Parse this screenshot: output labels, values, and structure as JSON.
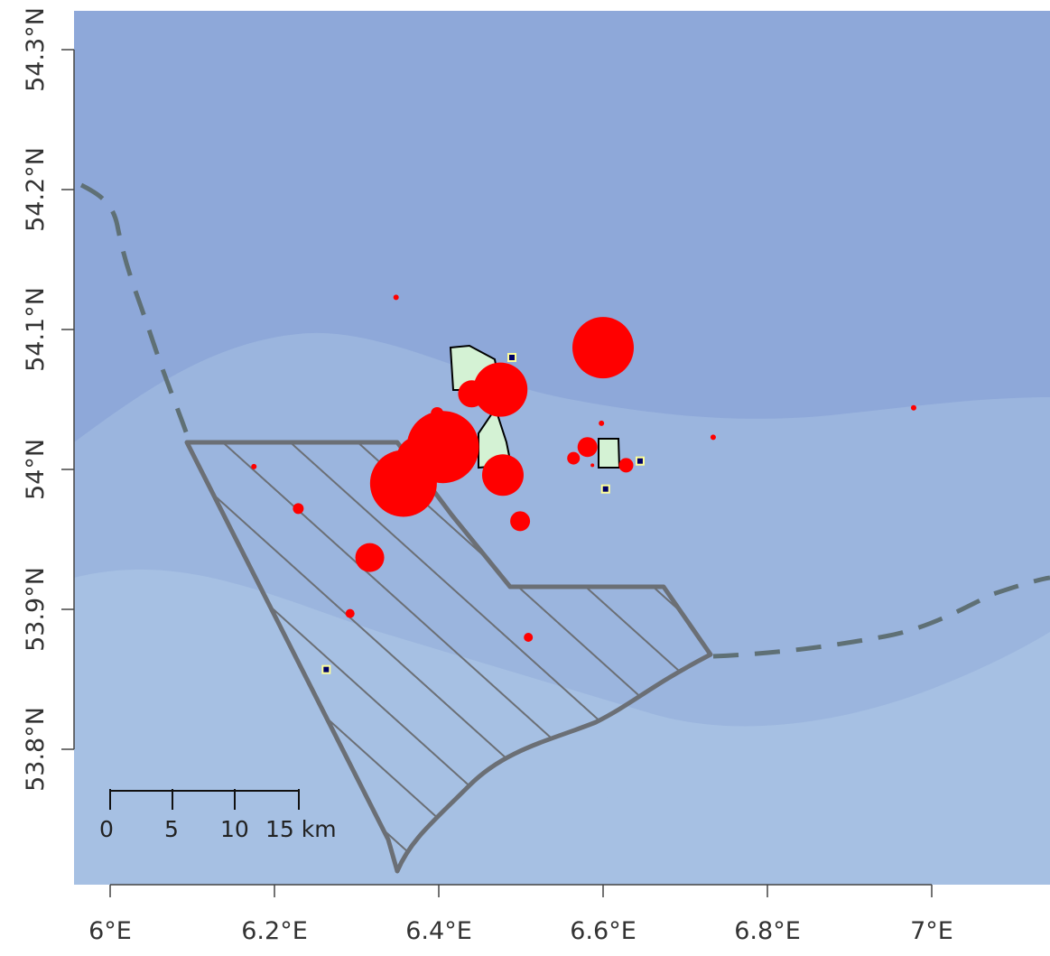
{
  "map": {
    "title": "",
    "colors": {
      "sea_deep": "#8ea8d9",
      "sea_shallow": "#9bb5de",
      "sea_shallower": "#a6c0e3",
      "hatched_area": "#6b6f75",
      "boundary_dash": "#5f7075",
      "cluster_fill": "#d4f2d4",
      "sighting_fill": "#ff0000",
      "station_marker": "#000066",
      "station_ring": "#ffff99"
    },
    "layers": [
      "bathymetry",
      "maritime-boundary",
      "hatched-zone",
      "survey-clusters",
      "sighting-bubbles",
      "stations",
      "scale-bar"
    ],
    "x_axis": {
      "ticks": [
        "6°E",
        "6.2°E",
        "6.4°E",
        "6.6°E",
        "6.8°E",
        "7°E"
      ]
    },
    "y_axis": {
      "ticks": [
        "53.8°N",
        "53.9°N",
        "54°N",
        "54.1°N",
        "54.2°N",
        "54.3°N"
      ]
    },
    "scale_bar": {
      "labels": [
        "0",
        "5",
        "10",
        "15 km"
      ]
    },
    "sightings_scaled_by_size": true
  },
  "sightings": [
    {
      "lon": 6.6,
      "lat": 54.087,
      "size": 34
    },
    {
      "lon": 6.405,
      "lat": 54.016,
      "size": 40
    },
    {
      "lon": 6.357,
      "lat": 53.99,
      "size": 37
    },
    {
      "lon": 6.375,
      "lat": 54.008,
      "size": 24
    },
    {
      "lon": 6.475,
      "lat": 54.057,
      "size": 30
    },
    {
      "lon": 6.478,
      "lat": 53.996,
      "size": 23
    },
    {
      "lon": 6.44,
      "lat": 54.054,
      "size": 15
    },
    {
      "lon": 6.316,
      "lat": 53.937,
      "size": 16
    },
    {
      "lon": 6.499,
      "lat": 53.963,
      "size": 11
    },
    {
      "lon": 6.581,
      "lat": 54.016,
      "size": 11
    },
    {
      "lon": 6.564,
      "lat": 54.008,
      "size": 7
    },
    {
      "lon": 6.628,
      "lat": 54.003,
      "size": 8
    },
    {
      "lon": 6.398,
      "lat": 54.04,
      "size": 7
    },
    {
      "lon": 6.229,
      "lat": 53.972,
      "size": 6
    },
    {
      "lon": 6.292,
      "lat": 53.897,
      "size": 5
    },
    {
      "lon": 6.509,
      "lat": 53.88,
      "size": 5
    },
    {
      "lon": 6.348,
      "lat": 54.123,
      "size": 3
    },
    {
      "lon": 6.175,
      "lat": 54.002,
      "size": 3
    },
    {
      "lon": 6.598,
      "lat": 54.033,
      "size": 3
    },
    {
      "lon": 6.734,
      "lat": 54.023,
      "size": 3
    },
    {
      "lon": 6.978,
      "lat": 54.044,
      "size": 3
    },
    {
      "lon": 6.587,
      "lat": 54.003,
      "size": 2
    }
  ],
  "stations": [
    {
      "lon": 6.489,
      "lat": 54.08
    },
    {
      "lon": 6.645,
      "lat": 54.006
    },
    {
      "lon": 6.603,
      "lat": 53.986
    },
    {
      "lon": 6.263,
      "lat": 53.857
    }
  ]
}
